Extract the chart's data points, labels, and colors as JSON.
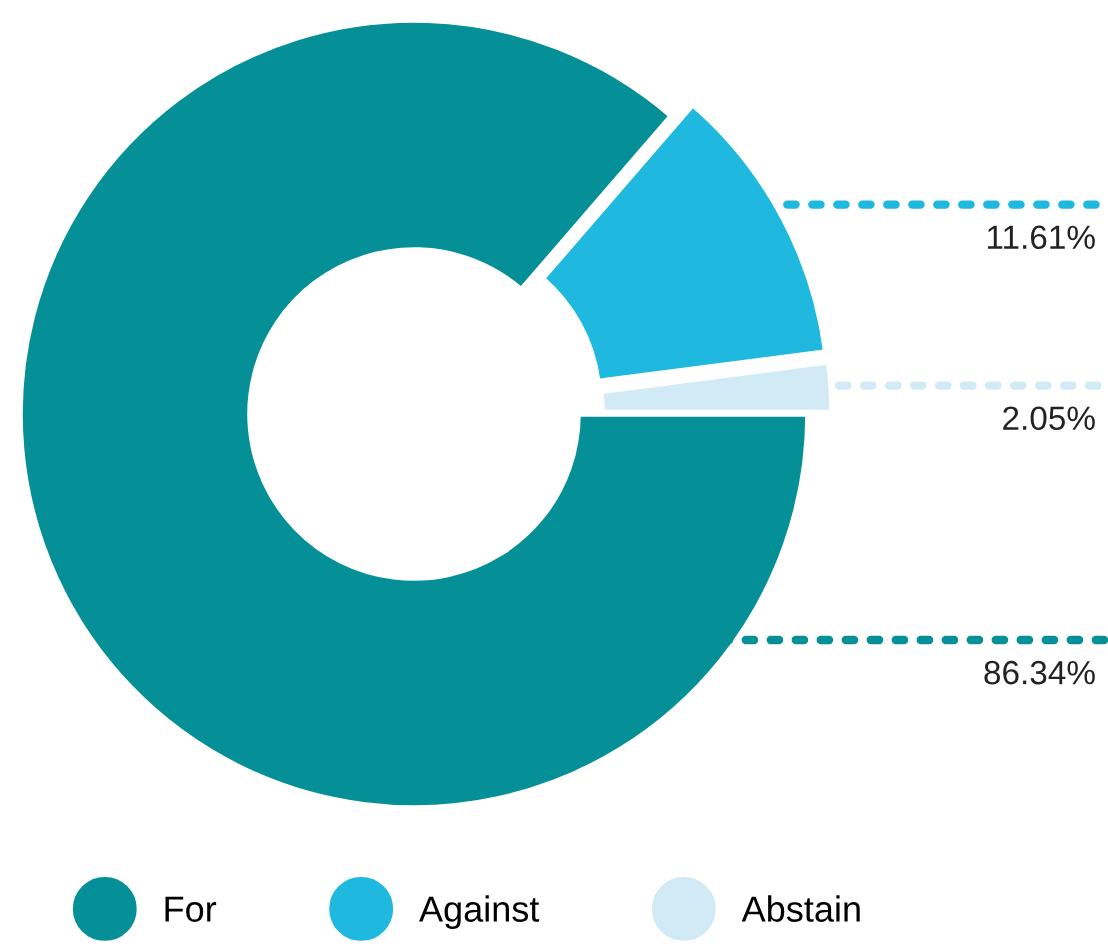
{
  "chart_data": {
    "type": "donut",
    "categories": [
      "For",
      "Against",
      "Abstain"
    ],
    "values": [
      86.34,
      11.61,
      2.05
    ],
    "colors": [
      "#058f96",
      "#1fb9e0",
      "#d2eaf5"
    ],
    "value_labels": [
      "86.34%",
      "11.61%",
      "2.05%"
    ],
    "legend": "bottom"
  }
}
